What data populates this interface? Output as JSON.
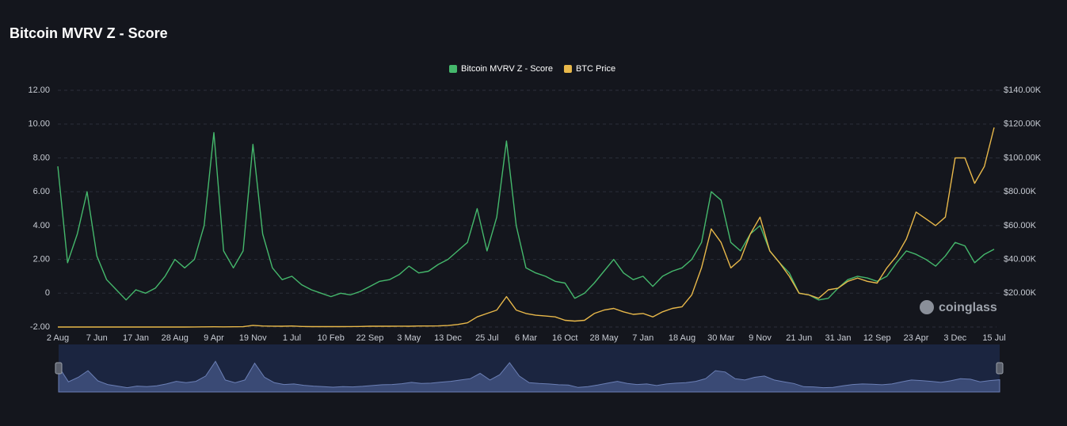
{
  "chart_data": {
    "type": "line",
    "title": "Bitcoin MVRV Z - Score",
    "watermark": "coinglass",
    "categories": [
      "2 Aug",
      null,
      null,
      null,
      "7 Jun",
      null,
      null,
      null,
      "17 Jan",
      null,
      null,
      null,
      "28 Aug",
      null,
      null,
      null,
      "9 Apr",
      null,
      null,
      null,
      "19 Nov",
      null,
      null,
      null,
      "1 Jul",
      null,
      null,
      null,
      "10 Feb",
      null,
      null,
      null,
      "22 Sep",
      null,
      null,
      null,
      "3 May",
      null,
      null,
      null,
      "13 Dec",
      null,
      null,
      null,
      "25 Jul",
      null,
      null,
      null,
      "6 Mar",
      null,
      null,
      null,
      "16 Oct",
      null,
      null,
      null,
      "28 May",
      null,
      null,
      null,
      "7 Jan",
      null,
      null,
      null,
      "18 Aug",
      null,
      null,
      null,
      "30 Mar",
      null,
      null,
      null,
      "9 Nov",
      null,
      null,
      null,
      "21 Jun",
      null,
      null,
      null,
      "31 Jan",
      null,
      null,
      null,
      "12 Sep",
      null,
      null,
      null,
      "23 Apr",
      null,
      null,
      null,
      "3 Dec",
      null,
      null,
      null,
      "15 Jul"
    ],
    "series": [
      {
        "name": "Bitcoin MVRV Z - Score",
        "color": "#45b86c",
        "values": [
          7.5,
          1.8,
          3.5,
          6.0,
          2.2,
          0.8,
          0.2,
          -0.4,
          0.2,
          0.0,
          0.3,
          1.0,
          2.0,
          1.5,
          2.0,
          4.0,
          9.5,
          2.5,
          1.5,
          2.5,
          8.8,
          3.5,
          1.5,
          0.8,
          1.0,
          0.5,
          0.2,
          0.0,
          -0.2,
          0.0,
          -0.1,
          0.1,
          0.4,
          0.7,
          0.8,
          1.1,
          1.6,
          1.2,
          1.3,
          1.7,
          2.0,
          2.5,
          3.0,
          5.0,
          2.5,
          4.5,
          9.0,
          4.0,
          1.5,
          1.2,
          1.0,
          0.7,
          0.6,
          -0.3,
          0.0,
          0.6,
          1.3,
          2.0,
          1.2,
          0.8,
          1.0,
          0.4,
          1.0,
          1.3,
          1.5,
          2.0,
          3.0,
          6.0,
          5.5,
          3.0,
          2.5,
          3.5,
          4.0,
          2.5,
          1.8,
          1.2,
          0.0,
          -0.1,
          -0.4,
          -0.3,
          0.3,
          0.8,
          1.0,
          0.9,
          0.7,
          1.0,
          1.8,
          2.5,
          2.3,
          2.0,
          1.6,
          2.2,
          3.0,
          2.8,
          1.8,
          2.3,
          2.6
        ]
      },
      {
        "name": "BTC Price",
        "color": "#e8b84a",
        "axis": "y2",
        "values": [
          0.06,
          0.2,
          0.1,
          0.8,
          15,
          5,
          3,
          6,
          16,
          7,
          5,
          6,
          10,
          13,
          30,
          100,
          140,
          100,
          120,
          200,
          1000,
          600,
          500,
          450,
          600,
          350,
          250,
          230,
          230,
          250,
          300,
          350,
          450,
          450,
          450,
          500,
          450,
          600,
          600,
          650,
          900,
          1500,
          2500,
          6000,
          8000,
          10000,
          18000,
          10000,
          8000,
          7000,
          6500,
          6000,
          4000,
          3500,
          4000,
          8000,
          10000,
          11000,
          9000,
          7500,
          8000,
          6000,
          9000,
          11000,
          12000,
          19000,
          35000,
          58000,
          50000,
          35000,
          40000,
          55000,
          65000,
          45000,
          38000,
          30000,
          20000,
          19000,
          17000,
          22000,
          23000,
          27000,
          29000,
          27000,
          26000,
          35000,
          42000,
          52000,
          68000,
          64000,
          60000,
          65000,
          100000,
          100000,
          85000,
          95000,
          118000
        ]
      }
    ],
    "ylim": [
      -2,
      12
    ],
    "yticks": [
      {
        "value": -2,
        "label": "-2.00"
      },
      0,
      {
        "value": 2,
        "label": "2.00"
      },
      {
        "value": 4,
        "label": "4.00"
      },
      {
        "value": 6,
        "label": "6.00"
      },
      {
        "value": 8,
        "label": "8.00"
      },
      {
        "value": 10,
        "label": "10.00"
      },
      {
        "value": 12,
        "label": "12.00"
      }
    ],
    "y2lim": [
      0,
      140000
    ],
    "y2ticks": [
      {
        "value": 20000,
        "label": "$20.00K"
      },
      {
        "value": 40000,
        "label": "$40.00K"
      },
      {
        "value": 60000,
        "label": "$60.00K"
      },
      {
        "value": 80000,
        "label": "$80.00K"
      },
      {
        "value": 100000,
        "label": "$100.00K"
      },
      {
        "value": 120000,
        "label": "$120.00K"
      },
      {
        "value": 140000,
        "label": "$140.00K"
      }
    ],
    "grid": true,
    "legend": "top"
  }
}
